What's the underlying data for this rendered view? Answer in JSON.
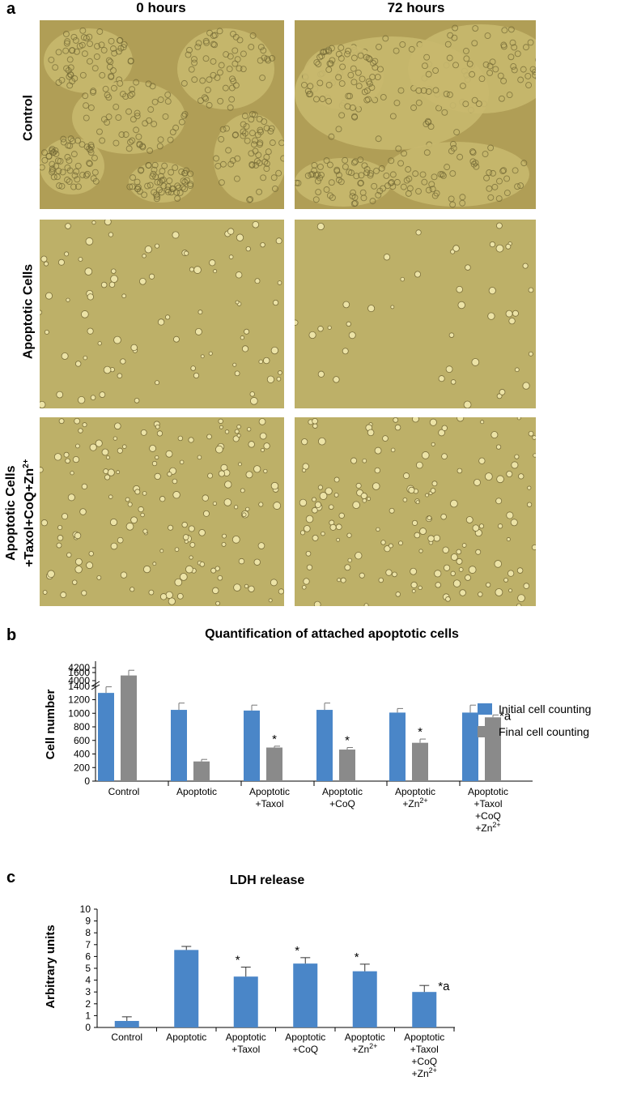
{
  "panel_a": {
    "letter": "a",
    "columns": [
      "0 hours",
      "72 hours"
    ],
    "rows": [
      {
        "label_lines": [
          "Control"
        ],
        "density": "confluent"
      },
      {
        "label_lines": [
          "Apoptotic Cells"
        ],
        "density": "sparse"
      },
      {
        "label_lines": [
          "Apoptotic Cells",
          "+Taxol+CoQ+Zn2+"
        ],
        "density": "medium"
      }
    ]
  },
  "panel_b": {
    "letter": "b"
  },
  "panel_c": {
    "letter": "c"
  },
  "chart_data": [
    {
      "type": "bar",
      "title": "Quantification of attached apoptotic cells",
      "xlabel": "",
      "ylabel": "Cell number",
      "axis_break": {
        "lower_max": 1600,
        "upper_min": 4000,
        "upper_max": 4200
      },
      "yticks": [
        0,
        200,
        400,
        600,
        800,
        1000,
        1200,
        1400,
        1600,
        4000,
        4200
      ],
      "categories": [
        [
          "Control"
        ],
        [
          "Apoptotic"
        ],
        [
          "Apoptotic",
          "+Taxol"
        ],
        [
          "Apoptotic",
          "+CoQ"
        ],
        [
          "Apoptotic",
          "+Zn2+"
        ],
        [
          "Apoptotic",
          "+Taxol",
          "+CoQ",
          "+Zn2+"
        ]
      ],
      "series": [
        {
          "name": "Initial cell counting",
          "color": "#4a86c8",
          "values": [
            1300,
            1050,
            1040,
            1050,
            1010,
            1010
          ],
          "errors": [
            90,
            100,
            80,
            100,
            60,
            110
          ]
        },
        {
          "name": "Final cell counting",
          "color": "#8a8a8a",
          "values": [
            4080,
            290,
            495,
            465,
            565,
            940
          ],
          "errors": [
            80,
            30,
            20,
            30,
            55,
            35
          ]
        }
      ],
      "annotations": [
        "",
        "",
        "*",
        "*",
        "*",
        "*a"
      ],
      "legend_position": "right"
    },
    {
      "type": "bar",
      "title": "LDH release",
      "xlabel": "",
      "ylabel": "Arbitrary units",
      "ylim": [
        0,
        10
      ],
      "yticks": [
        0,
        1,
        2,
        3,
        4,
        5,
        6,
        7,
        8,
        9,
        10
      ],
      "categories": [
        [
          "Control"
        ],
        [
          "Apoptotic"
        ],
        [
          "Apoptotic",
          "+Taxol"
        ],
        [
          "Apoptotic",
          "+CoQ"
        ],
        [
          "Apoptotic",
          "+Zn2+"
        ],
        [
          "Apoptotic",
          "+Taxol",
          "+CoQ",
          "+Zn2+"
        ]
      ],
      "series": [
        {
          "color": "#4a86c8",
          "values": [
            0.55,
            6.55,
            4.3,
            5.4,
            4.75,
            3.0
          ],
          "errors": [
            0.35,
            0.3,
            0.8,
            0.5,
            0.6,
            0.55
          ]
        }
      ],
      "annotations": [
        "",
        "",
        "*",
        "*",
        "*",
        "*a"
      ]
    }
  ]
}
